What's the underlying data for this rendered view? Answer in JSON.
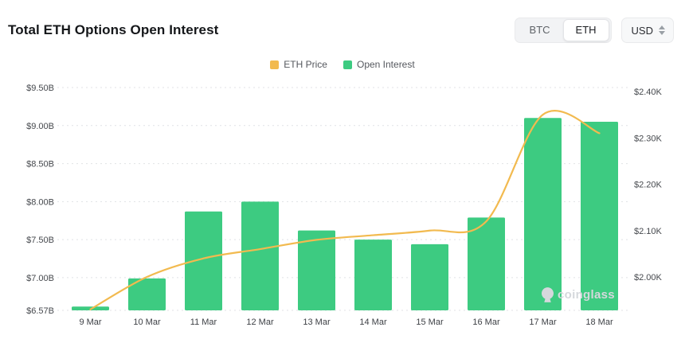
{
  "header": {
    "title": "Total ETH Options Open Interest",
    "asset_toggle": {
      "options": [
        {
          "label": "BTC",
          "active": false
        },
        {
          "label": "ETH",
          "active": true
        }
      ]
    },
    "currency": {
      "label": "USD"
    }
  },
  "legend": {
    "items": [
      {
        "label": "ETH Price",
        "color": "#F2BA4F"
      },
      {
        "label": "Open Interest",
        "color": "#3DCB81"
      }
    ]
  },
  "watermark": {
    "label": "coinglass"
  },
  "chart_data": {
    "type": "bar+line",
    "title": "Total ETH Options Open Interest",
    "categories": [
      "9 Mar",
      "10 Mar",
      "11 Mar",
      "12 Mar",
      "13 Mar",
      "14 Mar",
      "15 Mar",
      "16 Mar",
      "17 Mar",
      "18 Mar"
    ],
    "series": [
      {
        "name": "Open Interest",
        "type": "bar",
        "axis": "left",
        "unit": "USD billions",
        "color": "#3DCB81",
        "values": [
          6.62,
          6.99,
          7.87,
          8.0,
          7.62,
          7.5,
          7.44,
          7.79,
          9.1,
          9.05
        ]
      },
      {
        "name": "ETH Price",
        "type": "line",
        "axis": "right",
        "unit": "USD thousands",
        "color": "#F2BA4F",
        "values": [
          1.93,
          2.0,
          2.04,
          2.06,
          2.08,
          2.09,
          2.1,
          2.12,
          2.35,
          2.31
        ]
      }
    ],
    "left_axis": {
      "min": 6.57,
      "max": 9.5,
      "ticks": [
        {
          "label": "$9.50B",
          "value": 9.5
        },
        {
          "label": "$9.00B",
          "value": 9.0
        },
        {
          "label": "$8.50B",
          "value": 8.5
        },
        {
          "label": "$8.00B",
          "value": 8.0
        },
        {
          "label": "$7.50B",
          "value": 7.5
        },
        {
          "label": "$7.00B",
          "value": 7.0
        },
        {
          "label": "$6.57B",
          "value": 6.57
        }
      ]
    },
    "right_axis": {
      "min": 2.0,
      "max": 2.4,
      "ticks": [
        {
          "label": "$2.40K",
          "value": 2.4
        },
        {
          "label": "$2.30K",
          "value": 2.3
        },
        {
          "label": "$2.20K",
          "value": 2.2
        },
        {
          "label": "$2.10K",
          "value": 2.1
        },
        {
          "label": "$2.00K",
          "value": 2.0
        }
      ]
    },
    "grid": "dotted-horizontal",
    "legend_position": "top-center"
  }
}
